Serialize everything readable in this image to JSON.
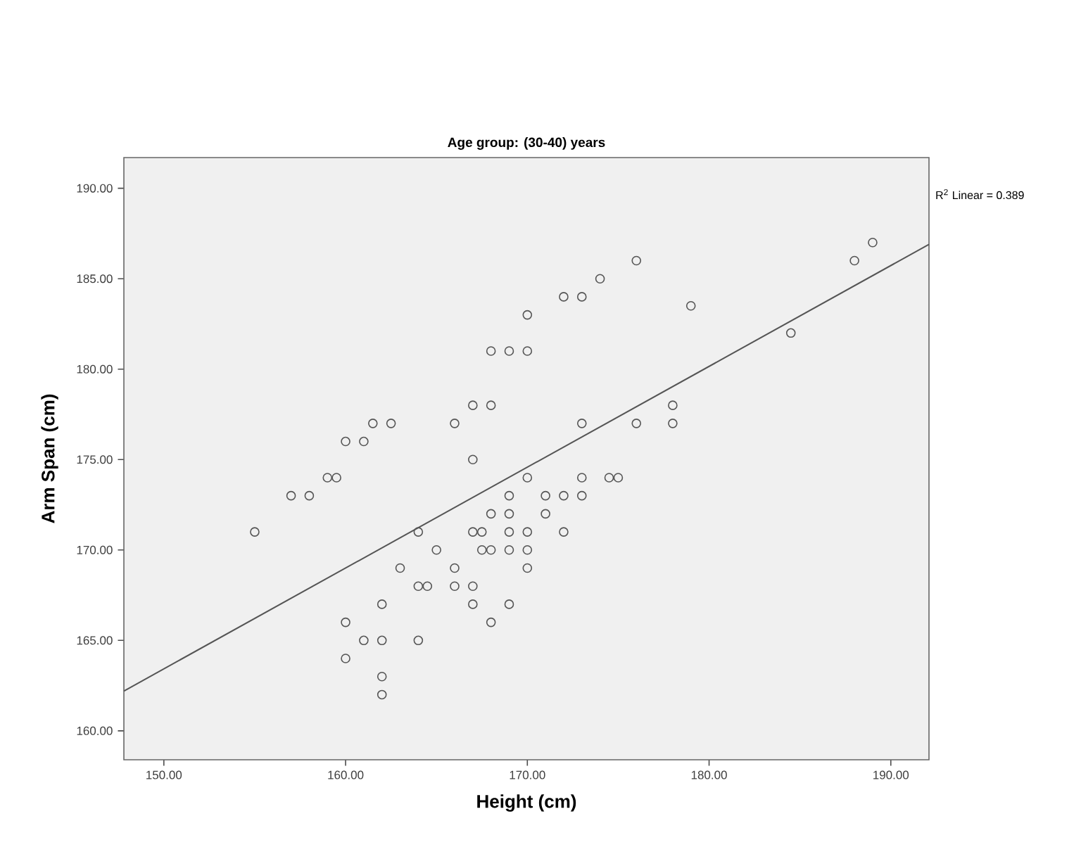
{
  "chart_data": {
    "type": "scatter",
    "title": "Age group: (30-40) years",
    "xlabel": "Height (cm)",
    "ylabel": "Arm Span (cm)",
    "annotations": [
      "R$^{2}$ Linear = 0.389"
    ],
    "xlim": [
      147.8,
      192.1
    ],
    "ylim": [
      158.4,
      191.7
    ],
    "xticks": [
      {
        "value": 150,
        "label": "150.00"
      },
      {
        "value": 160,
        "label": "160.00"
      },
      {
        "value": 170,
        "label": "170.00"
      },
      {
        "value": 180,
        "label": "180.00"
      },
      {
        "value": 190,
        "label": "190.00"
      }
    ],
    "yticks": [
      {
        "value": 160,
        "label": "160.00"
      },
      {
        "value": 165,
        "label": "165.00"
      },
      {
        "value": 170,
        "label": "170.00"
      },
      {
        "value": 175,
        "label": "175.00"
      },
      {
        "value": 180,
        "label": "180.00"
      },
      {
        "value": 185,
        "label": "185.00"
      },
      {
        "value": 190,
        "label": "190.00"
      }
    ],
    "grid": false,
    "series": [
      {
        "marker": "circle",
        "color": "#555555",
        "x": [
          170,
          168,
          169,
          170,
          167,
          168,
          161.5,
          162.5,
          166,
          160,
          161,
          167,
          159,
          159.5,
          157,
          158,
          170,
          169,
          168,
          169,
          176,
          189,
          188,
          174,
          172,
          173,
          179,
          184.5,
          178,
          178,
          176,
          173,
          173,
          174.5,
          175,
          171,
          172,
          173,
          171,
          155,
          164,
          167,
          167.5,
          169,
          170,
          165,
          167.5,
          168,
          169,
          170,
          163,
          166,
          170,
          164,
          164.5,
          166,
          167,
          162,
          167,
          169,
          168,
          160,
          161,
          162,
          164,
          160,
          162,
          162,
          172
        ],
        "values": [
          183,
          181,
          181,
          181,
          178,
          178,
          177,
          177,
          177,
          176,
          176,
          175,
          174,
          174,
          173,
          173,
          174,
          173,
          172,
          172,
          186,
          187,
          186,
          185,
          184,
          184,
          183.5,
          182,
          178,
          177,
          177,
          177,
          174,
          174,
          174,
          173,
          173,
          173,
          172,
          171,
          171,
          171,
          171,
          171,
          171,
          170,
          170,
          170,
          170,
          170,
          169,
          169,
          169,
          168,
          168,
          168,
          168,
          167,
          167,
          167,
          166,
          166,
          165,
          165,
          165,
          164,
          163,
          162,
          171
        ]
      },
      {
        "type": "line",
        "marker": "none",
        "color": "#555555",
        "x": [
          147.8,
          192.1
        ],
        "values": [
          162.2,
          186.9
        ]
      }
    ]
  }
}
